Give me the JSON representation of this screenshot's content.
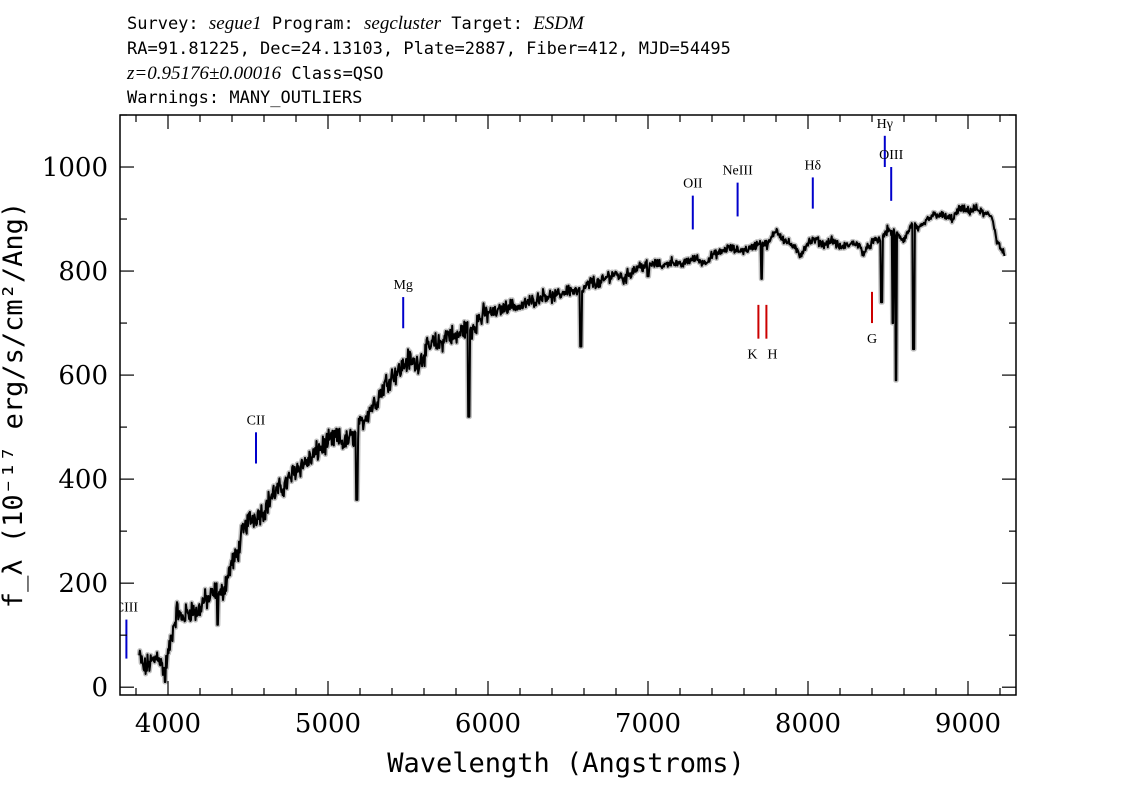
{
  "header": {
    "line1": {
      "survey_label": "Survey: ",
      "survey": "segue1",
      "program_label": " Program: ",
      "program": "segcluster",
      "target_label": " Target: ",
      "target": "ESDM"
    },
    "line2": "RA=91.81225, Dec=24.13103, Plate=2887, Fiber=412, MJD=54495",
    "line3": {
      "redshift": "z=0.95176±0.00016",
      "class": " Class=QSO"
    },
    "line4": "Warnings: MANY_OUTLIERS"
  },
  "chart_data": {
    "type": "line",
    "xlabel": "Wavelength (Angstroms)",
    "ylabel": "f_λ (10⁻¹⁷ erg/s/cm²/Ang)",
    "xlim": [
      3700,
      9300
    ],
    "ylim": [
      -15,
      1100
    ],
    "x_ticks": [
      4000,
      5000,
      6000,
      7000,
      8000,
      9000
    ],
    "x_tick_labels": [
      "4000",
      "5000",
      "6000",
      "7000",
      "8000",
      "9000"
    ],
    "y_ticks": [
      0,
      200,
      400,
      600,
      800,
      1000
    ],
    "y_tick_labels": [
      "0",
      "200",
      "400",
      "600",
      "800",
      "1000"
    ],
    "x_minor_step": 200,
    "y_minor_step": 100,
    "grid": false,
    "series": [
      {
        "color": "#000000",
        "points": [
          [
            3820,
            60
          ],
          [
            3850,
            35
          ],
          [
            3880,
            45
          ],
          [
            3910,
            50
          ],
          [
            3940,
            65
          ],
          [
            3960,
            40
          ],
          [
            3980,
            35
          ],
          [
            4000,
            60
          ],
          [
            4030,
            110
          ],
          [
            4060,
            150
          ],
          [
            4080,
            130
          ],
          [
            4110,
            140
          ],
          [
            4150,
            150
          ],
          [
            4180,
            140
          ],
          [
            4220,
            165
          ],
          [
            4260,
            170
          ],
          [
            4300,
            185
          ],
          [
            4330,
            175
          ],
          [
            4360,
            200
          ],
          [
            4400,
            240
          ],
          [
            4430,
            250
          ],
          [
            4460,
            290
          ],
          [
            4500,
            320
          ],
          [
            4550,
            330
          ],
          [
            4600,
            340
          ],
          [
            4650,
            370
          ],
          [
            4700,
            380
          ],
          [
            4750,
            395
          ],
          [
            4800,
            420
          ],
          [
            4850,
            430
          ],
          [
            4900,
            440
          ],
          [
            4950,
            460
          ],
          [
            5000,
            470
          ],
          [
            5050,
            480
          ],
          [
            5100,
            470
          ],
          [
            5150,
            480
          ],
          [
            5200,
            500
          ],
          [
            5250,
            530
          ],
          [
            5300,
            550
          ],
          [
            5350,
            580
          ],
          [
            5400,
            600
          ],
          [
            5450,
            610
          ],
          [
            5500,
            630
          ],
          [
            5550,
            620
          ],
          [
            5600,
            640
          ],
          [
            5650,
            660
          ],
          [
            5700,
            660
          ],
          [
            5750,
            680
          ],
          [
            5800,
            670
          ],
          [
            5850,
            690
          ],
          [
            5900,
            690
          ],
          [
            5950,
            710
          ],
          [
            6000,
            720
          ],
          [
            6050,
            720
          ],
          [
            6100,
            730
          ],
          [
            6150,
            735
          ],
          [
            6200,
            730
          ],
          [
            6250,
            740
          ],
          [
            6300,
            745
          ],
          [
            6350,
            755
          ],
          [
            6400,
            750
          ],
          [
            6450,
            755
          ],
          [
            6500,
            765
          ],
          [
            6550,
            760
          ],
          [
            6600,
            765
          ],
          [
            6650,
            780
          ],
          [
            6700,
            775
          ],
          [
            6750,
            790
          ],
          [
            6800,
            795
          ],
          [
            6850,
            785
          ],
          [
            6900,
            800
          ],
          [
            6950,
            810
          ],
          [
            7000,
            810
          ],
          [
            7050,
            815
          ],
          [
            7100,
            810
          ],
          [
            7150,
            820
          ],
          [
            7200,
            810
          ],
          [
            7250,
            820
          ],
          [
            7300,
            825
          ],
          [
            7350,
            815
          ],
          [
            7400,
            830
          ],
          [
            7450,
            835
          ],
          [
            7500,
            845
          ],
          [
            7550,
            840
          ],
          [
            7600,
            840
          ],
          [
            7650,
            845
          ],
          [
            7700,
            855
          ],
          [
            7750,
            850
          ],
          [
            7800,
            880
          ],
          [
            7850,
            860
          ],
          [
            7900,
            850
          ],
          [
            7950,
            830
          ],
          [
            8000,
            855
          ],
          [
            8050,
            860
          ],
          [
            8100,
            850
          ],
          [
            8150,
            860
          ],
          [
            8200,
            845
          ],
          [
            8250,
            850
          ],
          [
            8300,
            855
          ],
          [
            8350,
            835
          ],
          [
            8400,
            855
          ],
          [
            8450,
            860
          ],
          [
            8500,
            880
          ],
          [
            8550,
            870
          ],
          [
            8600,
            860
          ],
          [
            8650,
            890
          ],
          [
            8700,
            880
          ],
          [
            8750,
            900
          ],
          [
            8800,
            910
          ],
          [
            8850,
            905
          ],
          [
            8900,
            900
          ],
          [
            8950,
            920
          ],
          [
            9000,
            915
          ],
          [
            9050,
            920
          ],
          [
            9100,
            910
          ],
          [
            9150,
            905
          ],
          [
            9180,
            860
          ],
          [
            9210,
            840
          ],
          [
            9230,
            830
          ]
        ],
        "dips": [
          [
            3982,
            10
          ],
          [
            4310,
            120
          ],
          [
            5180,
            360
          ],
          [
            5880,
            520
          ],
          [
            6580,
            655
          ],
          [
            7000,
            790
          ],
          [
            7710,
            785
          ],
          [
            8460,
            740
          ],
          [
            8530,
            700
          ],
          [
            8550,
            590
          ],
          [
            8660,
            650
          ]
        ]
      }
    ],
    "error_band_color": "#c0c0c0",
    "lines": [
      {
        "label": "CIII",
        "x": 3740,
        "y_low": 55,
        "y_high": 130,
        "color": "#0000cc",
        "label_pos": "above"
      },
      {
        "label": "CII",
        "x": 4550,
        "y_low": 430,
        "y_high": 490,
        "color": "#0000cc",
        "label_pos": "above"
      },
      {
        "label": "Mg",
        "x": 5470,
        "y_low": 690,
        "y_high": 750,
        "color": "#0000cc",
        "label_pos": "above"
      },
      {
        "label": "OII",
        "x": 7280,
        "y_low": 880,
        "y_high": 945,
        "color": "#0000cc",
        "label_pos": "above"
      },
      {
        "label": "NeIII",
        "x": 7560,
        "y_low": 905,
        "y_high": 970,
        "color": "#0000cc",
        "label_pos": "above"
      },
      {
        "label": "Hδ",
        "x": 8030,
        "y_low": 920,
        "y_high": 980,
        "color": "#0000cc",
        "label_pos": "above"
      },
      {
        "label": "Hγ",
        "x": 8480,
        "y_low": 1000,
        "y_high": 1060,
        "color": "#0000cc",
        "label_pos": "above"
      },
      {
        "label": "OIII",
        "x": 8520,
        "y_low": 935,
        "y_high": 1000,
        "color": "#0000cc",
        "label_pos": "above"
      },
      {
        "label": "K",
        "x": 7690,
        "y_low": 670,
        "y_high": 735,
        "color": "#cc0000",
        "label_pos": "below"
      },
      {
        "label": "H",
        "x": 7740,
        "y_low": 670,
        "y_high": 735,
        "color": "#cc0000",
        "label_pos": "below"
      },
      {
        "label": "G",
        "x": 8400,
        "y_low": 700,
        "y_high": 760,
        "color": "#cc0000",
        "label_pos": "below"
      }
    ]
  }
}
